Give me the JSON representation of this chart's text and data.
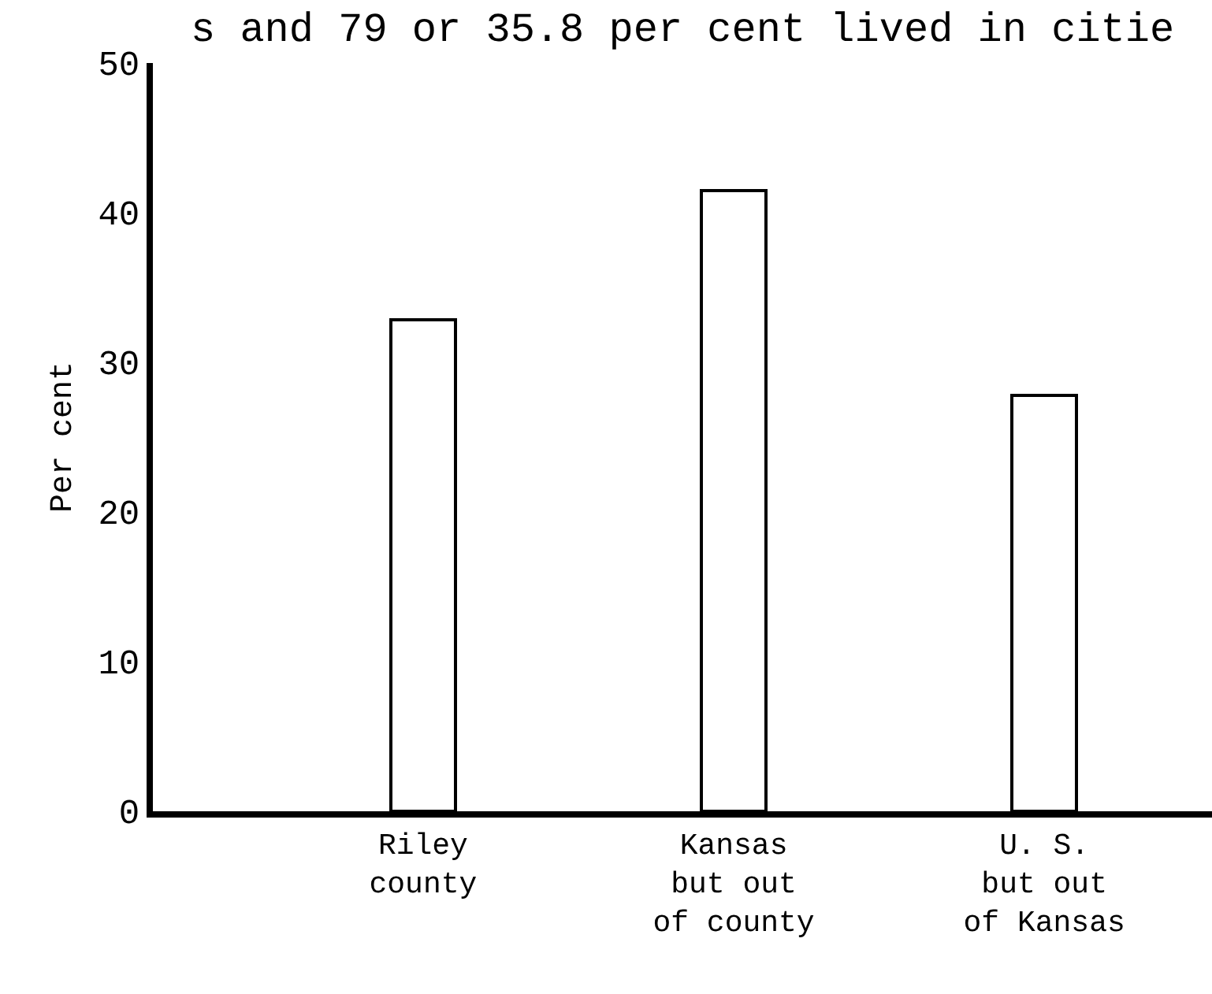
{
  "chart_data": {
    "type": "bar",
    "ylabel": "Per cent",
    "annotations": [
      "s and 79 or 35.8 per cent lived in citie"
    ],
    "categories": [
      "Riley\ncounty",
      "Kansas\nbut out\nof county",
      "U. S.\nbut out\nof Kansas"
    ],
    "values": [
      32.8,
      41.5,
      27.8
    ],
    "color": "#ffffff",
    "ylim": [
      0,
      50
    ],
    "yticks": [
      0,
      10,
      20,
      30,
      40,
      50
    ]
  }
}
